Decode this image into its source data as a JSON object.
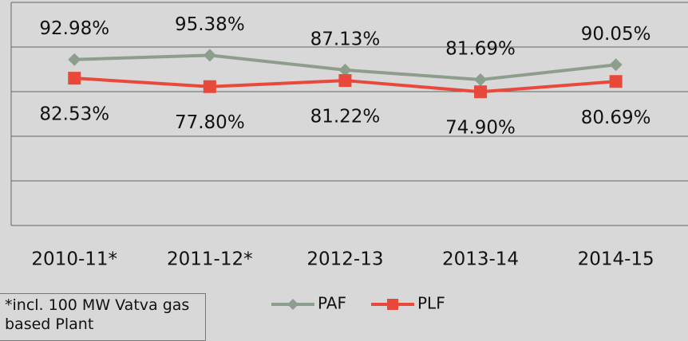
{
  "chart_data": {
    "type": "line",
    "categories": [
      "2010-11*",
      "2011-12*",
      "2012-13",
      "2013-14",
      "2014-15"
    ],
    "series": [
      {
        "name": "PAF",
        "color": "#8d9e8d",
        "values": [
          92.98,
          95.38,
          87.13,
          81.69,
          90.05
        ],
        "value_labels": [
          "92.98%",
          "95.38%",
          "87.13%",
          "81.69%",
          "90.05%"
        ]
      },
      {
        "name": "PLF",
        "color": "#e8493b",
        "values": [
          82.53,
          77.8,
          81.22,
          74.9,
          80.69
        ],
        "value_labels": [
          "82.53%",
          "77.80%",
          "81.22%",
          "74.90%",
          "80.69%"
        ]
      }
    ],
    "ylim": [
      0,
      125
    ],
    "yticks": [
      0,
      25,
      50,
      75,
      100,
      125
    ],
    "grid": true,
    "legend": "bottom",
    "note": "*incl. 100 MW Vatva gas based Plant"
  }
}
